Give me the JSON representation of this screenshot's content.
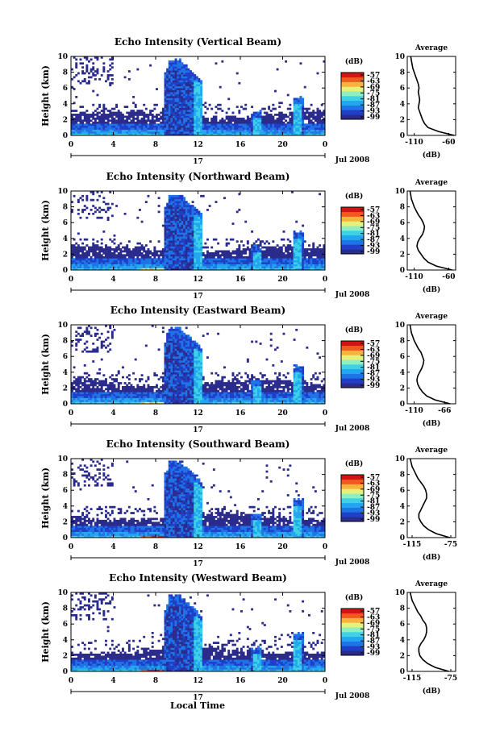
{
  "figure": {
    "xlabel": "Local Time",
    "date_label": "Jul 2008",
    "day_label": "17",
    "ylabel": "Height (km)",
    "cbar_unit": "(dB)",
    "avg_title": "Average",
    "avg_xlabel": "(dB)",
    "x_ticks": [
      "0",
      "4",
      "8",
      "12",
      "16",
      "20",
      "0"
    ],
    "y_ticks": [
      "0",
      "2",
      "4",
      "6",
      "8",
      "10"
    ],
    "cbar_ticks": [
      "-57",
      "-63",
      "-69",
      "-75",
      "-81",
      "-87",
      "-93",
      "-99"
    ],
    "colormap": [
      "#2b2b8c",
      "#1f3fc8",
      "#1e73e6",
      "#22a6f0",
      "#3fd2e6",
      "#8ef0c0",
      "#e6f07a",
      "#f6b43c",
      "#f05a1e",
      "#d21414"
    ]
  },
  "chart_data": [
    {
      "type": "heatmap",
      "title": "Echo Intensity (Vertical Beam)",
      "xlabel": "Local Time",
      "ylabel": "Height (km)",
      "xlim": [
        0,
        24
      ],
      "ylim": [
        0,
        10
      ],
      "colorbar": {
        "unit": "(dB)",
        "range": [
          -99,
          -57
        ]
      },
      "average_profile": {
        "title": "Average",
        "xlabel": "(dB)",
        "xlim": [
          -120,
          -50
        ],
        "x_ticks": [
          "-110",
          "-60"
        ],
        "height": [
          0,
          0.5,
          1,
          1.5,
          2,
          2.5,
          3,
          3.5,
          4,
          4.5,
          5,
          5.5,
          6,
          6.5,
          7,
          7.5,
          8,
          8.5,
          9,
          9.5,
          10
        ],
        "values": [
          -52,
          -75,
          -90,
          -95,
          -98,
          -100,
          -102,
          -104,
          -103,
          -102,
          -103,
          -104,
          -103,
          -104,
          -106,
          -108,
          -110,
          -112,
          -113,
          -114,
          -115
        ]
      }
    },
    {
      "type": "heatmap",
      "title": "Echo Intensity (Northward Beam)",
      "xlabel": "Local Time",
      "ylabel": "Height (km)",
      "xlim": [
        0,
        24
      ],
      "ylim": [
        0,
        10
      ],
      "colorbar": {
        "unit": "(dB)",
        "range": [
          -99,
          -57
        ]
      },
      "average_profile": {
        "title": "Average",
        "xlabel": "(dB)",
        "xlim": [
          -120,
          -50
        ],
        "x_ticks": [
          "-110",
          "-60"
        ],
        "height": [
          0,
          0.5,
          1,
          1.5,
          2,
          2.5,
          3,
          3.5,
          4,
          4.5,
          5,
          5.5,
          6,
          6.5,
          7,
          7.5,
          8,
          8.5,
          9,
          9.5,
          10
        ],
        "values": [
          -55,
          -78,
          -90,
          -96,
          -100,
          -104,
          -106,
          -105,
          -102,
          -98,
          -96,
          -95,
          -97,
          -100,
          -104,
          -107,
          -110,
          -112,
          -114,
          -115,
          -116
        ]
      }
    },
    {
      "type": "heatmap",
      "title": "Echo Intensity (Eastward Beam)",
      "xlabel": "Local Time",
      "ylabel": "Height (km)",
      "xlim": [
        0,
        24
      ],
      "ylim": [
        0,
        10
      ],
      "colorbar": {
        "unit": "(dB)",
        "range": [
          -99,
          -57
        ]
      },
      "average_profile": {
        "title": "Average",
        "xlabel": "(dB)",
        "xlim": [
          -120,
          -50
        ],
        "x_ticks": [
          "-110",
          "-66"
        ],
        "height": [
          0,
          0.5,
          1,
          1.5,
          2,
          2.5,
          3,
          3.5,
          4,
          4.5,
          5,
          5.5,
          6,
          6.5,
          7,
          7.5,
          8,
          8.5,
          9,
          9.5,
          10
        ],
        "values": [
          -58,
          -80,
          -92,
          -98,
          -102,
          -105,
          -106,
          -105,
          -102,
          -99,
          -97,
          -96,
          -98,
          -100,
          -104,
          -107,
          -110,
          -112,
          -114,
          -115,
          -116
        ]
      }
    },
    {
      "type": "heatmap",
      "title": "Echo Intensity (Southward Beam)",
      "xlabel": "Local Time",
      "ylabel": "Height (km)",
      "xlim": [
        0,
        24
      ],
      "ylim": [
        0,
        10
      ],
      "colorbar": {
        "unit": "(dB)",
        "range": [
          -99,
          -57
        ]
      },
      "average_profile": {
        "title": "Average",
        "xlabel": "(dB)",
        "xlim": [
          -120,
          -70
        ],
        "x_ticks": [
          "-115",
          "-75"
        ],
        "height": [
          0,
          0.5,
          1,
          1.5,
          2,
          2.5,
          3,
          3.5,
          4,
          4.5,
          5,
          5.5,
          6,
          6.5,
          7,
          7.5,
          8,
          8.5,
          9,
          9.5,
          10
        ],
        "values": [
          -76,
          -90,
          -98,
          -103,
          -106,
          -108,
          -108,
          -106,
          -104,
          -102,
          -100,
          -100,
          -101,
          -103,
          -106,
          -109,
          -111,
          -113,
          -115,
          -116,
          -117
        ]
      }
    },
    {
      "type": "heatmap",
      "title": "Echo Intensity (Westward Beam)",
      "xlabel": "Local Time",
      "ylabel": "Height (km)",
      "xlim": [
        0,
        24
      ],
      "ylim": [
        0,
        10
      ],
      "colorbar": {
        "unit": "(dB)",
        "range": [
          -99,
          -57
        ]
      },
      "average_profile": {
        "title": "Average",
        "xlabel": "(dB)",
        "xlim": [
          -120,
          -70
        ],
        "x_ticks": [
          "-115",
          "-75"
        ],
        "height": [
          0,
          0.5,
          1,
          1.5,
          2,
          2.5,
          3,
          3.5,
          4,
          4.5,
          5,
          5.5,
          6,
          6.5,
          7,
          7.5,
          8,
          8.5,
          9,
          9.5,
          10
        ],
        "values": [
          -77,
          -91,
          -99,
          -104,
          -107,
          -108,
          -108,
          -106,
          -103,
          -101,
          -100,
          -100,
          -101,
          -104,
          -106,
          -109,
          -111,
          -113,
          -115,
          -116,
          -117
        ]
      }
    }
  ]
}
